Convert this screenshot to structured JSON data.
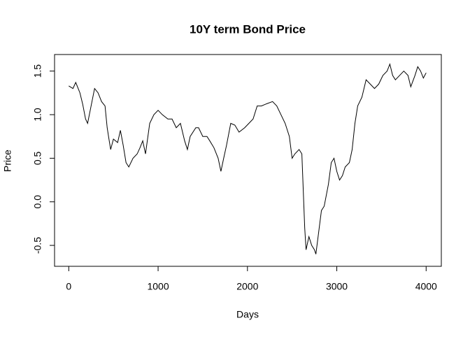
{
  "chart_data": {
    "type": "line",
    "title": "10Y term Bond Price",
    "xlabel": "Days",
    "ylabel": "Price",
    "color": "#000000",
    "x": [
      0,
      47,
      78,
      125,
      156,
      188,
      211,
      250,
      289,
      328,
      367,
      406,
      430,
      453,
      469,
      500,
      547,
      578,
      609,
      641,
      672,
      719,
      766,
      797,
      828,
      859,
      906,
      953,
      1000,
      1047,
      1109,
      1156,
      1203,
      1250,
      1297,
      1328,
      1359,
      1422,
      1453,
      1500,
      1547,
      1578,
      1625,
      1672,
      1703,
      1734,
      1766,
      1813,
      1859,
      1906,
      1969,
      2016,
      2063,
      2109,
      2156,
      2203,
      2281,
      2328,
      2375,
      2422,
      2469,
      2500,
      2531,
      2578,
      2609,
      2641,
      2656,
      2688,
      2719,
      2750,
      2766,
      2797,
      2828,
      2859,
      2906,
      2938,
      2969,
      3000,
      3031,
      3063,
      3094,
      3141,
      3172,
      3203,
      3234,
      3281,
      3328,
      3375,
      3422,
      3469,
      3516,
      3563,
      3594,
      3625,
      3656,
      3703,
      3750,
      3797,
      3828,
      3875,
      3906,
      3938,
      3969,
      4000
    ],
    "values": [
      1.33,
      1.3,
      1.37,
      1.25,
      1.12,
      0.95,
      0.9,
      1.1,
      1.3,
      1.25,
      1.15,
      1.1,
      0.85,
      0.7,
      0.6,
      0.72,
      0.68,
      0.82,
      0.65,
      0.45,
      0.4,
      0.5,
      0.55,
      0.62,
      0.7,
      0.55,
      0.9,
      1.0,
      1.05,
      1.0,
      0.95,
      0.95,
      0.85,
      0.9,
      0.7,
      0.6,
      0.75,
      0.85,
      0.85,
      0.75,
      0.75,
      0.7,
      0.62,
      0.5,
      0.35,
      0.5,
      0.65,
      0.9,
      0.88,
      0.8,
      0.85,
      0.9,
      0.95,
      1.1,
      1.1,
      1.12,
      1.15,
      1.1,
      1.0,
      0.9,
      0.75,
      0.5,
      0.55,
      0.6,
      0.55,
      -0.3,
      -0.55,
      -0.4,
      -0.5,
      -0.55,
      -0.6,
      -0.35,
      -0.1,
      -0.05,
      0.2,
      0.45,
      0.5,
      0.35,
      0.25,
      0.3,
      0.4,
      0.45,
      0.6,
      0.9,
      1.1,
      1.2,
      1.4,
      1.35,
      1.3,
      1.35,
      1.45,
      1.5,
      1.58,
      1.45,
      1.4,
      1.45,
      1.5,
      1.45,
      1.32,
      1.45,
      1.55,
      1.5,
      1.42,
      1.48
    ],
    "xlim": [
      -159,
      4170
    ],
    "ylim": [
      -0.74,
      1.69
    ],
    "xticks": [
      0,
      1000,
      2000,
      3000,
      4000
    ],
    "yticks": [
      -0.5,
      {
        "value": 0,
        "label": "0.0"
      },
      0.5,
      {
        "value": 1,
        "label": "1.0"
      },
      1.5
    ]
  }
}
